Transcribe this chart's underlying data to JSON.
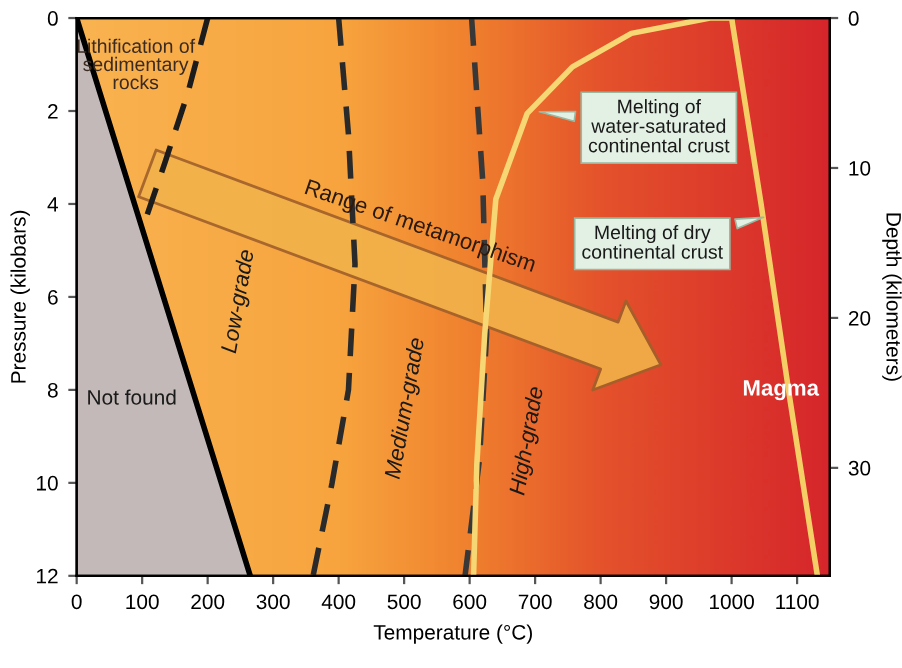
{
  "chart_data": {
    "type": "line",
    "xlabel": "Temperature (°C)",
    "ylabel": "Pressure (kilobars)",
    "y2label": "Depth (kilometers)",
    "xlim": [
      0,
      1150
    ],
    "xticks": [
      0,
      100,
      200,
      300,
      400,
      500,
      600,
      700,
      800,
      900,
      1000,
      1100
    ],
    "ylim": [
      12,
      0
    ],
    "yticks": [
      0,
      2,
      4,
      6,
      8,
      10,
      12
    ],
    "y2lim": [
      37.2,
      0
    ],
    "y2ticks": [
      0,
      10,
      20,
      30
    ],
    "series": [
      {
        "color": "#000000",
        "line_style": "solid",
        "x": [
          0,
          265
        ],
        "values": [
          0,
          12
        ]
      },
      {
        "color": "#1c1c1c",
        "line_style": "dashed",
        "x": [
          200,
          170,
          135,
          100
        ],
        "values": [
          0,
          1.6,
          3.1,
          4.55
        ]
      },
      {
        "color": "#2a2a2a",
        "line_style": "dashed",
        "x": [
          400,
          415,
          425,
          415,
          390,
          361
        ],
        "values": [
          0,
          2.5,
          5.3,
          8,
          10,
          12
        ]
      },
      {
        "color": "#383838",
        "line_style": "dashed",
        "x": [
          603,
          620,
          626,
          615,
          593
        ],
        "values": [
          0,
          3.5,
          6.8,
          9.5,
          12
        ]
      },
      {
        "color": "#f7d774",
        "line_style": "solid",
        "x": [
          1000,
          967,
          847,
          757,
          688,
          640,
          623,
          611,
          606
        ],
        "values": [
          0,
          0,
          0.33,
          1.05,
          2.05,
          3.9,
          6.8,
          9.6,
          12
        ]
      },
      {
        "color": "#f5cf66",
        "line_style": "solid",
        "x": [
          1000,
          1045,
          1089,
          1131
        ],
        "values": [
          0,
          4,
          8.2,
          12
        ]
      }
    ],
    "annotations": [
      "Lithification of\nsedimentary\nrocks",
      "Range of metamorphism",
      "Low-grade",
      "Medium-grade",
      "High-grade",
      "Not found",
      "Magma",
      {
        "text": "Melting of\nwater-saturated\ncontinental crust",
        "x": 698,
        "y": 2.0
      },
      {
        "text": "Melting of dry\ncontinental crust",
        "x": 1057,
        "y": 4.26
      }
    ]
  }
}
